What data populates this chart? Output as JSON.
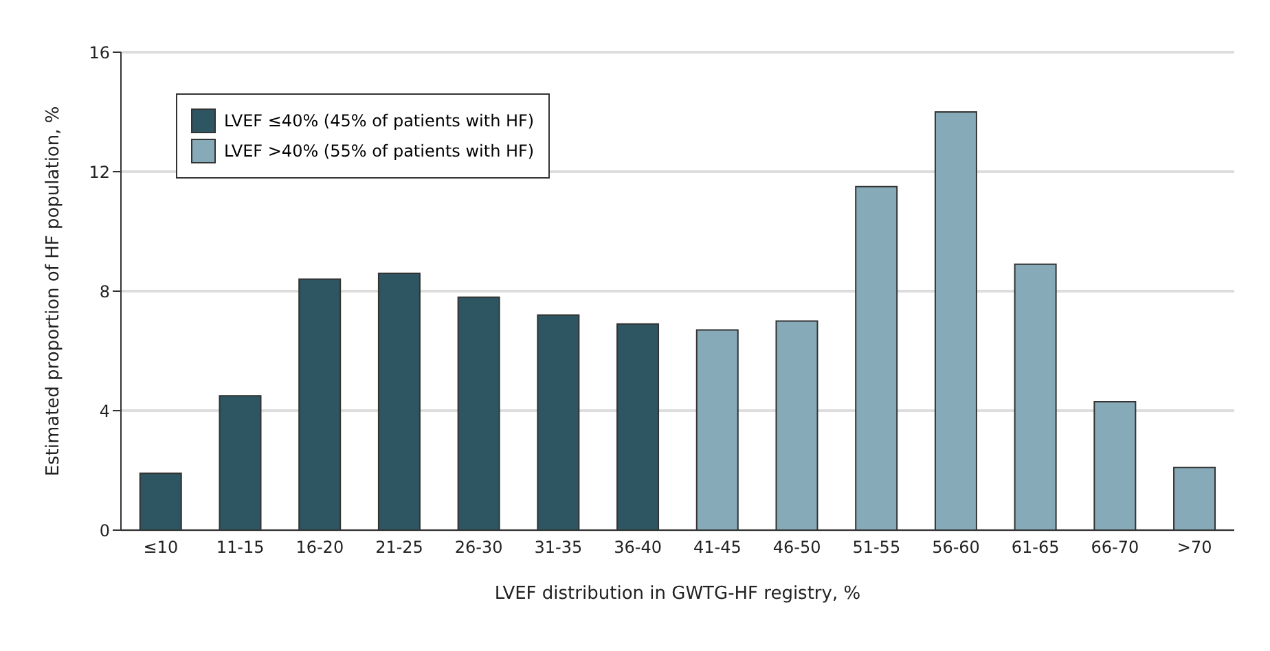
{
  "chart_data": {
    "type": "bar",
    "xlabel": "LVEF distribution in GWTG-HF registry, %",
    "ylabel": "Estimated proportion of HF population, %",
    "categories": [
      "≤10",
      "11-15",
      "16-20",
      "21-25",
      "26-30",
      "31-35",
      "36-40",
      "41-45",
      "46-50",
      "51-55",
      "56-60",
      "61-65",
      "66-70",
      ">70"
    ],
    "series": [
      {
        "name": "LVEF ≤40% (45% of patients with HF)",
        "color": "#2e5562",
        "values": [
          1.9,
          4.5,
          8.4,
          8.6,
          7.8,
          7.2,
          6.9,
          null,
          null,
          null,
          null,
          null,
          null,
          null
        ]
      },
      {
        "name": "LVEF >40% (55% of patients with HF)",
        "color": "#86aab8",
        "values": [
          null,
          null,
          null,
          null,
          null,
          null,
          null,
          6.7,
          7.0,
          11.5,
          14.0,
          8.9,
          4.3,
          2.1
        ]
      }
    ],
    "ylim": [
      0,
      16
    ],
    "yticks": [
      0,
      4,
      8,
      12,
      16
    ],
    "grid": "y",
    "legend": "top left"
  }
}
